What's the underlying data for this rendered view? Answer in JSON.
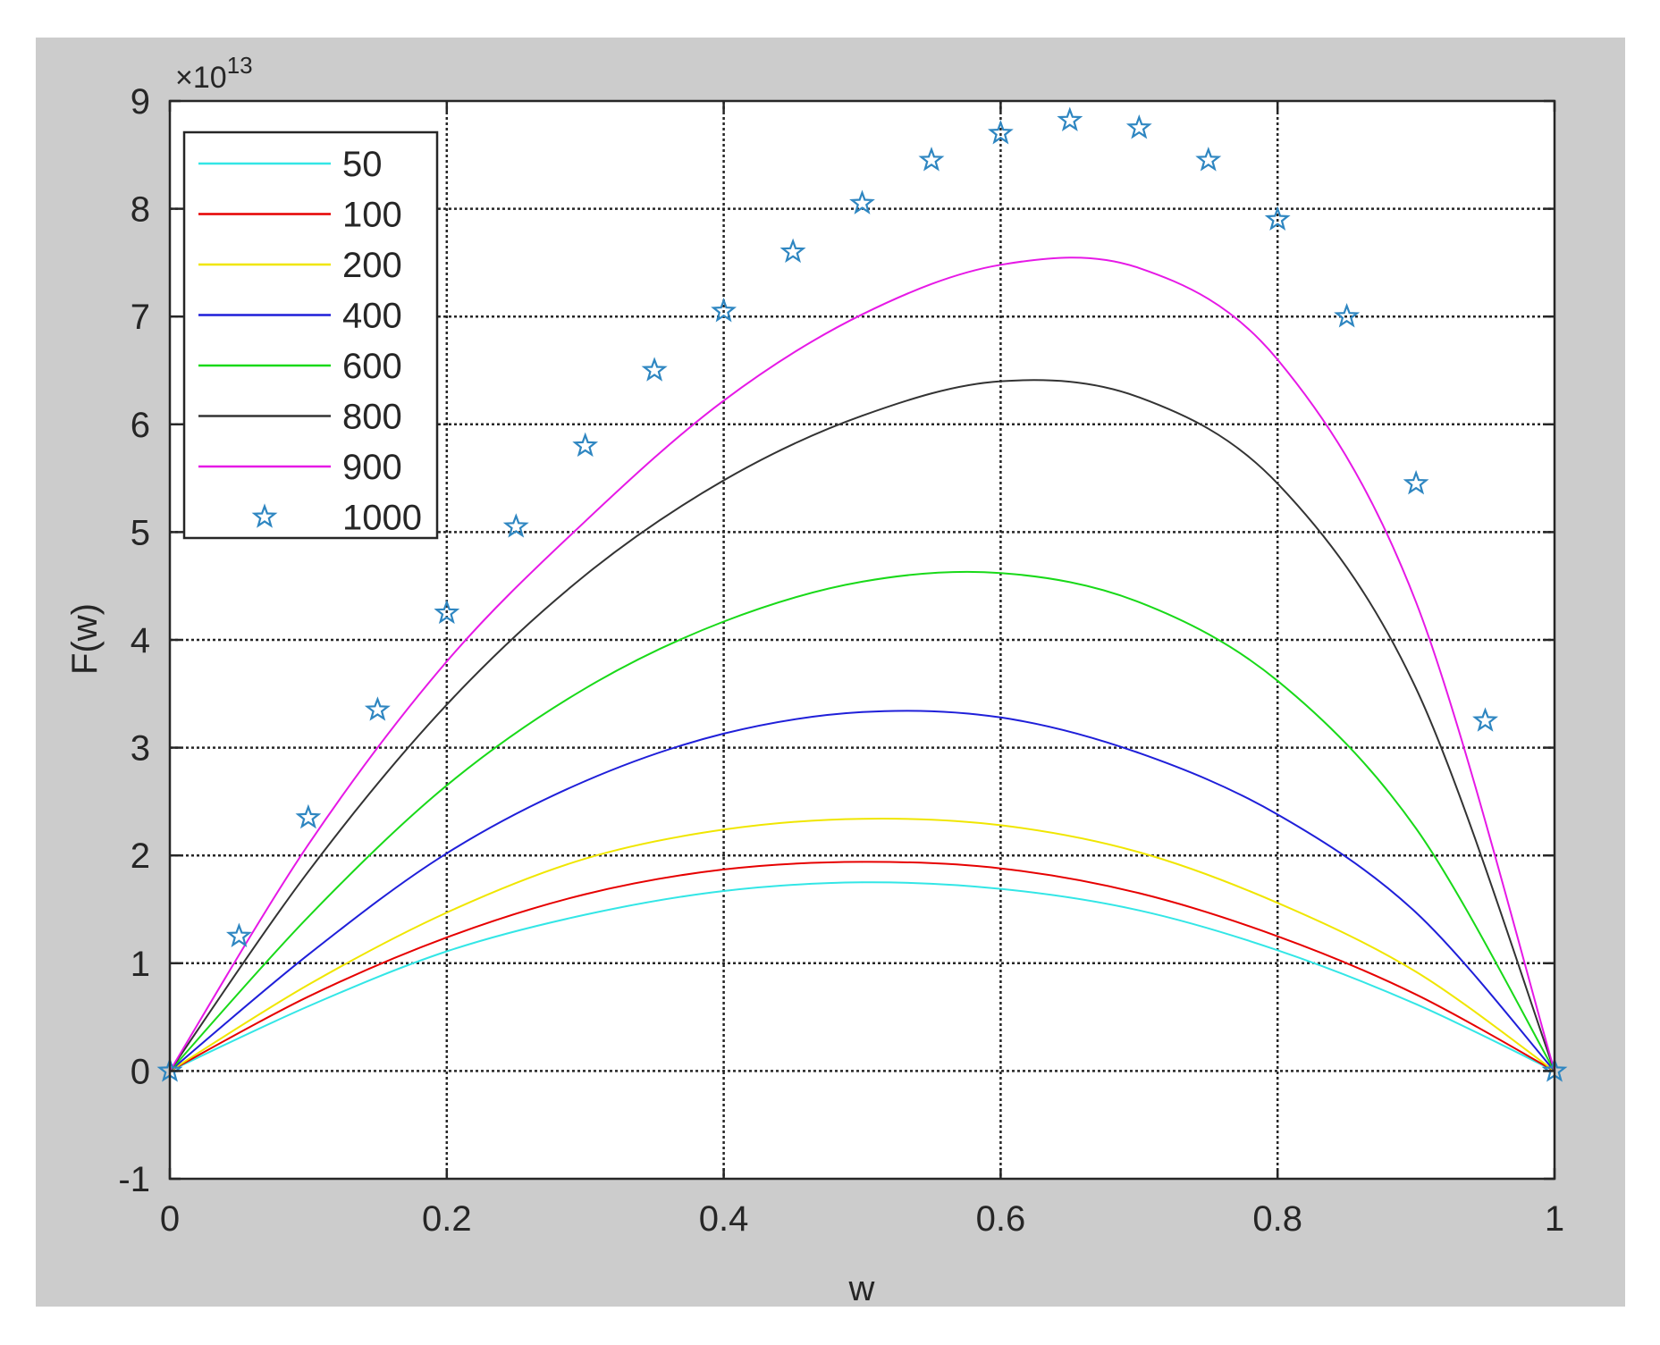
{
  "chart_data": {
    "type": "line",
    "xlabel": "w",
    "ylabel": "F(w)",
    "y_multiplier": "×10",
    "y_exponent": "13",
    "xlim": [
      0,
      1
    ],
    "ylim": [
      -1,
      9
    ],
    "x_ticks": [
      0,
      0.2,
      0.4,
      0.6,
      0.8,
      1
    ],
    "x_tick_labels": [
      "0",
      "0.2",
      "0.4",
      "0.6",
      "0.8",
      "1"
    ],
    "y_ticks": [
      -1,
      0,
      1,
      2,
      3,
      4,
      5,
      6,
      7,
      8,
      9
    ],
    "y_tick_labels": [
      "-1",
      "0",
      "1",
      "2",
      "3",
      "4",
      "5",
      "6",
      "7",
      "8",
      "9"
    ],
    "grid": true,
    "legend_position": "top-left",
    "series": [
      {
        "name": "50",
        "color": "#33e6e6",
        "style": "line",
        "x": [
          0,
          0.1,
          0.2,
          0.3,
          0.4,
          0.5,
          0.6,
          0.7,
          0.8,
          0.9,
          1
        ],
        "y": [
          0,
          0.6,
          1.11,
          1.45,
          1.67,
          1.75,
          1.69,
          1.49,
          1.12,
          0.62,
          0
        ]
      },
      {
        "name": "100",
        "color": "#e60000",
        "style": "line",
        "x": [
          0,
          0.1,
          0.2,
          0.3,
          0.4,
          0.5,
          0.6,
          0.7,
          0.8,
          0.9,
          1
        ],
        "y": [
          0,
          0.69,
          1.24,
          1.64,
          1.87,
          1.94,
          1.88,
          1.65,
          1.25,
          0.71,
          0
        ]
      },
      {
        "name": "200",
        "color": "#f0e600",
        "style": "line",
        "x": [
          0,
          0.1,
          0.2,
          0.3,
          0.4,
          0.5,
          0.6,
          0.7,
          0.8,
          0.9,
          1
        ],
        "y": [
          0,
          0.8,
          1.47,
          1.97,
          2.24,
          2.34,
          2.28,
          2.03,
          1.56,
          0.92,
          0
        ]
      },
      {
        "name": "400",
        "color": "#1f1fd9",
        "style": "line",
        "x": [
          0,
          0.1,
          0.2,
          0.3,
          0.4,
          0.5,
          0.6,
          0.7,
          0.8,
          0.9,
          1
        ],
        "y": [
          0,
          1.08,
          2.02,
          2.69,
          3.13,
          3.33,
          3.28,
          2.95,
          2.38,
          1.47,
          0
        ]
      },
      {
        "name": "600",
        "color": "#19d919",
        "style": "line",
        "x": [
          0,
          0.1,
          0.2,
          0.3,
          0.4,
          0.5,
          0.6,
          0.7,
          0.8,
          0.9,
          1
        ],
        "y": [
          0,
          1.43,
          2.65,
          3.55,
          4.17,
          4.54,
          4.62,
          4.35,
          3.62,
          2.25,
          0
        ]
      },
      {
        "name": "800",
        "color": "#333333",
        "style": "line",
        "x": [
          0,
          0.1,
          0.2,
          0.3,
          0.4,
          0.5,
          0.6,
          0.7,
          0.8,
          0.9,
          1
        ],
        "y": [
          0,
          1.85,
          3.4,
          4.6,
          5.48,
          6.08,
          6.4,
          6.25,
          5.45,
          3.55,
          0
        ]
      },
      {
        "name": "900",
        "color": "#e619e6",
        "style": "line",
        "x": [
          0,
          0.1,
          0.2,
          0.3,
          0.4,
          0.5,
          0.6,
          0.7,
          0.8,
          0.9,
          1
        ],
        "y": [
          0,
          2.1,
          3.8,
          5.1,
          6.22,
          7.02,
          7.48,
          7.45,
          6.6,
          4.35,
          0
        ]
      },
      {
        "name": "1000",
        "color": "#2e86c1",
        "style": "marker-star",
        "x": [
          0,
          0.05,
          0.1,
          0.15,
          0.2,
          0.25,
          0.3,
          0.35,
          0.4,
          0.45,
          0.5,
          0.55,
          0.6,
          0.65,
          0.7,
          0.75,
          0.8,
          0.85,
          0.9,
          0.95,
          1
        ],
        "y": [
          0,
          1.25,
          2.35,
          3.35,
          4.25,
          5.05,
          5.8,
          6.5,
          7.05,
          7.6,
          8.05,
          8.45,
          8.7,
          8.82,
          8.75,
          8.45,
          7.9,
          7.0,
          5.45,
          3.25,
          0
        ]
      }
    ]
  }
}
